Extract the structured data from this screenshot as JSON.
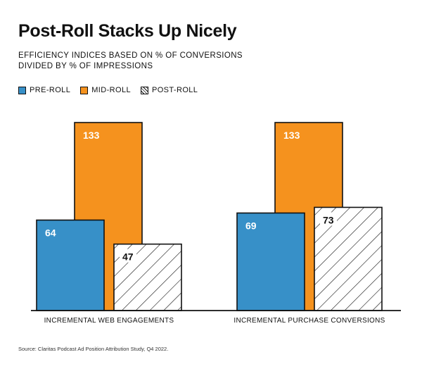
{
  "chart_data": {
    "type": "bar",
    "title": "Post-Roll Stacks Up Nicely",
    "subtitle_lines": [
      "EFFICIENCY INDICES BASED ON % OF CONVERSIONS",
      "DIVIDED BY % OF IMPRESSIONS"
    ],
    "categories": [
      "INCREMENTAL WEB ENGAGEMENTS",
      "INCREMENTAL PURCHASE CONVERSIONS"
    ],
    "series": [
      {
        "name": "PRE-ROLL",
        "values": [
          64,
          69
        ],
        "color": "#3790c8",
        "pattern": "solid"
      },
      {
        "name": "MID-ROLL",
        "values": [
          133,
          133
        ],
        "color": "#f5921e",
        "pattern": "solid"
      },
      {
        "name": "POST-ROLL",
        "values": [
          47,
          73
        ],
        "color": "#ffffff",
        "pattern": "hatch"
      }
    ],
    "ylim": [
      0,
      133
    ],
    "grid": false,
    "legend_position": "top-left",
    "source": "Source: Claritas Podcast Ad Position Attribution Study, Q4 2022."
  }
}
